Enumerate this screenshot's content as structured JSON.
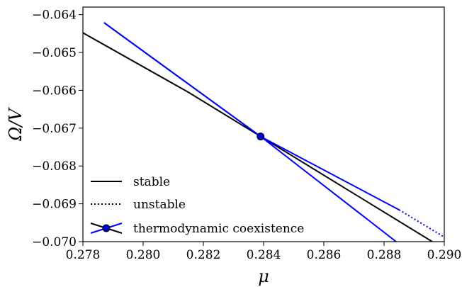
{
  "chart_data": {
    "type": "line",
    "xlabel": "μ",
    "ylabel": "Ω/V",
    "xlim": [
      0.278,
      0.29
    ],
    "ylim": [
      -0.07,
      -0.0638
    ],
    "xticks": [
      "0.278",
      "0.280",
      "0.282",
      "0.284",
      "0.286",
      "0.288",
      "0.290"
    ],
    "xtick_values": [
      0.278,
      0.28,
      0.282,
      0.284,
      0.286,
      0.288,
      0.29
    ],
    "yticks": [
      "−0.064",
      "−0.065",
      "−0.066",
      "−0.067",
      "−0.068",
      "−0.069",
      "−0.070"
    ],
    "ytick_values": [
      -0.064,
      -0.065,
      -0.066,
      -0.067,
      -0.068,
      -0.069,
      -0.07
    ],
    "grid": false,
    "legend_position": "bottom-left",
    "series": [
      {
        "name": "stable",
        "color": "#000000",
        "style": "solid",
        "x": [
          0.278,
          0.2815,
          0.2839,
          0.2896
        ],
        "y": [
          -0.06448,
          -0.06605,
          -0.06722,
          -0.07
        ]
      },
      {
        "name": "",
        "color": "#0000ff",
        "style": "solid",
        "x": [
          0.2787,
          0.2839,
          0.2885
        ],
        "y": [
          -0.06421,
          -0.06722,
          -0.06916
        ]
      },
      {
        "name": "",
        "color": "#0000ff",
        "style": "dotted",
        "x": [
          0.2885,
          0.29
        ],
        "y": [
          -0.06916,
          -0.06988
        ]
      },
      {
        "name": "",
        "color": "#0000ff",
        "style": "solid",
        "x": [
          0.2787,
          0.2839,
          0.2884
        ],
        "y": [
          -0.06421,
          -0.06722,
          -0.07
        ]
      }
    ],
    "coexistence_point": {
      "x": 0.2839,
      "y": -0.06722,
      "color": "#0000cc"
    },
    "legend": [
      {
        "label": "stable",
        "style": "solid",
        "color": "#000000"
      },
      {
        "label": "unstable",
        "style": "dotted",
        "color": "#000000"
      },
      {
        "label": "thermodynamic coexistence",
        "style": "cross-marker",
        "color": "#0000ff"
      }
    ]
  }
}
